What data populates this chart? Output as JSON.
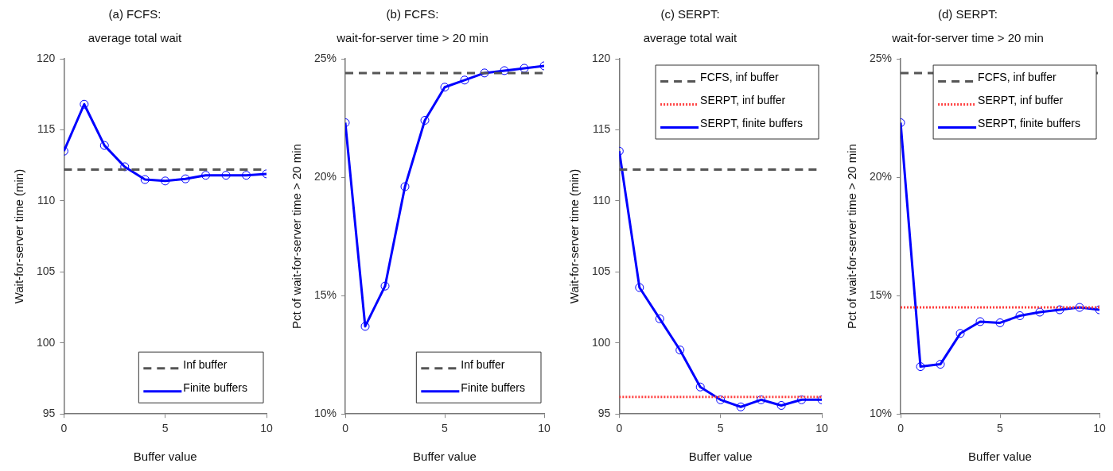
{
  "chart_data": [
    {
      "type": "line",
      "title": "(a) FCFS:",
      "subtitle": "average total wait",
      "xlabel": "Buffer value",
      "ylabel": "Wait-for-server time (min)",
      "x": [
        0,
        1,
        2,
        3,
        4,
        5,
        6,
        7,
        8,
        9,
        10
      ],
      "xlim": [
        0,
        10
      ],
      "xticks": [
        0,
        5,
        10
      ],
      "ylim": [
        95,
        120
      ],
      "yticks": [
        95,
        100,
        105,
        110,
        115,
        120
      ],
      "grid": false,
      "legend": "bottom right",
      "marker": "circle",
      "line_style": "solid",
      "series": [
        {
          "name": "Finite buffers",
          "color": "#0000ff",
          "values": [
            113.5,
            116.8,
            113.9,
            112.4,
            111.5,
            111.4,
            111.55,
            111.8,
            111.8,
            111.8,
            111.9
          ]
        }
      ],
      "ref_lines": [
        {
          "axis": "y",
          "value": 112.2,
          "label": "Inf buffer",
          "color": "#555555",
          "line_style": "dashed"
        }
      ]
    },
    {
      "type": "line",
      "title": "(b) FCFS:",
      "subtitle": "wait-for-server time > 20 min",
      "xlabel": "Buffer value",
      "ylabel": "Pct of wait-for-server time > 20 min",
      "x": [
        0,
        1,
        2,
        3,
        4,
        5,
        6,
        7,
        8,
        9,
        10
      ],
      "xlim": [
        0,
        10
      ],
      "xticks": [
        0,
        5,
        10
      ],
      "ylim": [
        10,
        25
      ],
      "yticks": [
        {
          "value": 10,
          "label": "10%"
        },
        {
          "value": 15,
          "label": "15%"
        },
        {
          "value": 20,
          "label": "20%"
        },
        {
          "value": 25,
          "label": "25%"
        }
      ],
      "grid": false,
      "legend": "bottom right",
      "marker": "circle",
      "line_style": "solid",
      "series": [
        {
          "name": "Finite buffers",
          "color": "#0000ff",
          "values": [
            22.3,
            13.7,
            15.4,
            19.6,
            22.4,
            23.8,
            24.1,
            24.4,
            24.5,
            24.6,
            24.7
          ]
        }
      ],
      "ref_lines": [
        {
          "axis": "y",
          "value": 24.4,
          "label": "Inf buffer",
          "color": "#555555",
          "line_style": "dashed"
        }
      ]
    },
    {
      "type": "line",
      "title": "(c) SERPT:",
      "subtitle": "average total wait",
      "xlabel": "Buffer value",
      "ylabel": "Wait-for-server time (min)",
      "x": [
        0,
        1,
        2,
        3,
        4,
        5,
        6,
        7,
        8,
        9,
        10
      ],
      "xlim": [
        0,
        10
      ],
      "xticks": [
        0,
        5,
        10
      ],
      "ylim": [
        95,
        120
      ],
      "yticks": [
        95,
        100,
        105,
        110,
        115,
        120
      ],
      "grid": false,
      "legend": "top right",
      "marker": "circle",
      "line_style": "solid",
      "series": [
        {
          "name": "SERPT, finite buffers",
          "color": "#0000ff",
          "values": [
            113.5,
            103.9,
            101.7,
            99.5,
            96.9,
            96.0,
            95.5,
            96.0,
            95.6,
            96.0,
            96.0
          ]
        }
      ],
      "ref_lines": [
        {
          "axis": "y",
          "value": 112.2,
          "label": "FCFS, inf buffer",
          "color": "#555555",
          "line_style": "dashed"
        },
        {
          "axis": "y",
          "value": 96.2,
          "label": "SERPT, inf buffer",
          "color": "#ff4040",
          "line_style": "dotted"
        }
      ]
    },
    {
      "type": "line",
      "title": "(d) SERPT:",
      "subtitle": "wait-for-server time > 20 min",
      "xlabel": "Buffer value",
      "ylabel": "Pct of wait-for-server time > 20 min",
      "x": [
        0,
        1,
        2,
        3,
        4,
        5,
        6,
        7,
        8,
        9,
        10
      ],
      "xlim": [
        0,
        10
      ],
      "xticks": [
        0,
        5,
        10
      ],
      "ylim": [
        10,
        25
      ],
      "yticks": [
        {
          "value": 10,
          "label": "10%"
        },
        {
          "value": 15,
          "label": "15%"
        },
        {
          "value": 20,
          "label": "20%"
        },
        {
          "value": 25,
          "label": "25%"
        }
      ],
      "grid": false,
      "legend": "top right",
      "marker": "circle",
      "line_style": "solid",
      "series": [
        {
          "name": "SERPT, finite buffers",
          "color": "#0000ff",
          "values": [
            22.3,
            12.0,
            12.1,
            13.4,
            13.9,
            13.85,
            14.15,
            14.3,
            14.4,
            14.5,
            14.4
          ]
        }
      ],
      "ref_lines": [
        {
          "axis": "y",
          "value": 24.4,
          "label": "FCFS, inf buffer",
          "color": "#555555",
          "line_style": "dashed"
        },
        {
          "axis": "y",
          "value": 14.5,
          "label": "SERPT, inf buffer",
          "color": "#ff4040",
          "line_style": "dotted"
        }
      ]
    }
  ]
}
